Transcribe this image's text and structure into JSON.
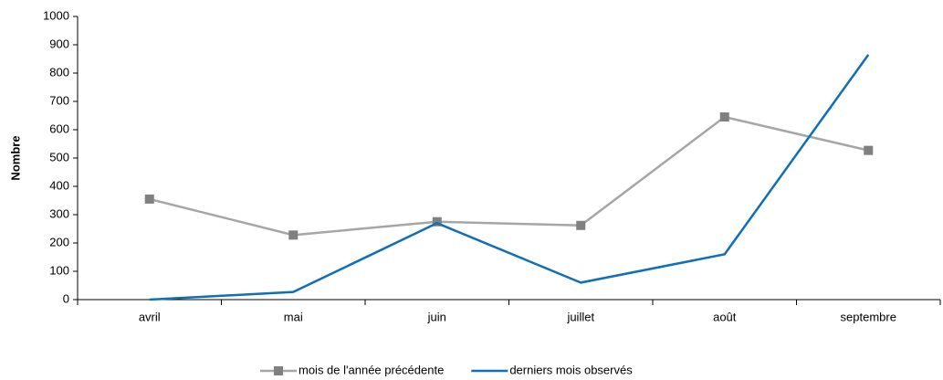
{
  "chart_data": {
    "type": "line",
    "y_label": "Nombre",
    "categories": [
      "avril",
      "mai",
      "juin",
      "juillet",
      "août",
      "septembre"
    ],
    "series": [
      {
        "name": "mois de l'année précédente",
        "color": "#a6a6a6",
        "marker_color": "#808080",
        "marker": "square",
        "values": [
          355,
          228,
          275,
          262,
          645,
          527
        ]
      },
      {
        "name": "derniers mois observés",
        "color": "#0f6fb7",
        "values": [
          0,
          27,
          270,
          60,
          160,
          865
        ]
      }
    ],
    "ylim": [
      0,
      1000
    ],
    "yticks": [
      0,
      100,
      200,
      300,
      400,
      500,
      600,
      700,
      800,
      900,
      1000
    ],
    "legend": "bottom"
  }
}
